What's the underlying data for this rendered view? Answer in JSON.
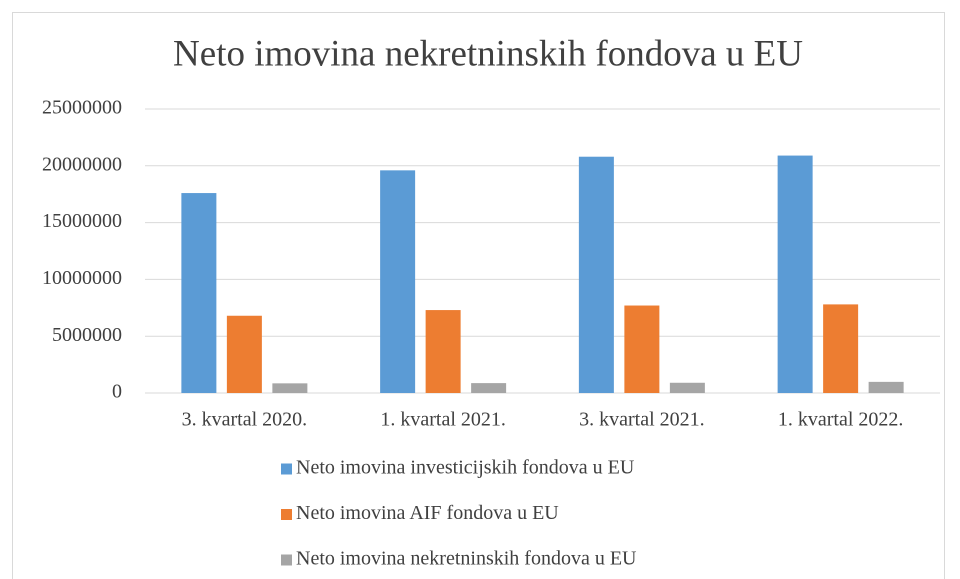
{
  "chart_data": {
    "type": "bar",
    "title": "Neto imovina nekretninskih fondova u EU",
    "categories": [
      "3. kvartal 2020.",
      "1. kvartal 2021.",
      "3. kvartal 2021.",
      "1. kvartal 2022."
    ],
    "series": [
      {
        "name": "Neto imovina investicijskih fondova u EU",
        "color": "#5b9bd5",
        "values": [
          17600000,
          19600000,
          20800000,
          20900000
        ]
      },
      {
        "name": "Neto imovina AIF fondova u EU",
        "color": "#ed7d31",
        "values": [
          6800000,
          7300000,
          7700000,
          7800000
        ]
      },
      {
        "name": "Neto imovina nekretninskih fondova u EU",
        "color": "#a5a5a5",
        "values": [
          850000,
          870000,
          900000,
          980000
        ]
      }
    ],
    "ylim": [
      0,
      25000000
    ],
    "yticks": [
      0,
      5000000,
      10000000,
      15000000,
      20000000,
      25000000
    ],
    "grid": true,
    "legend": "bottom"
  }
}
